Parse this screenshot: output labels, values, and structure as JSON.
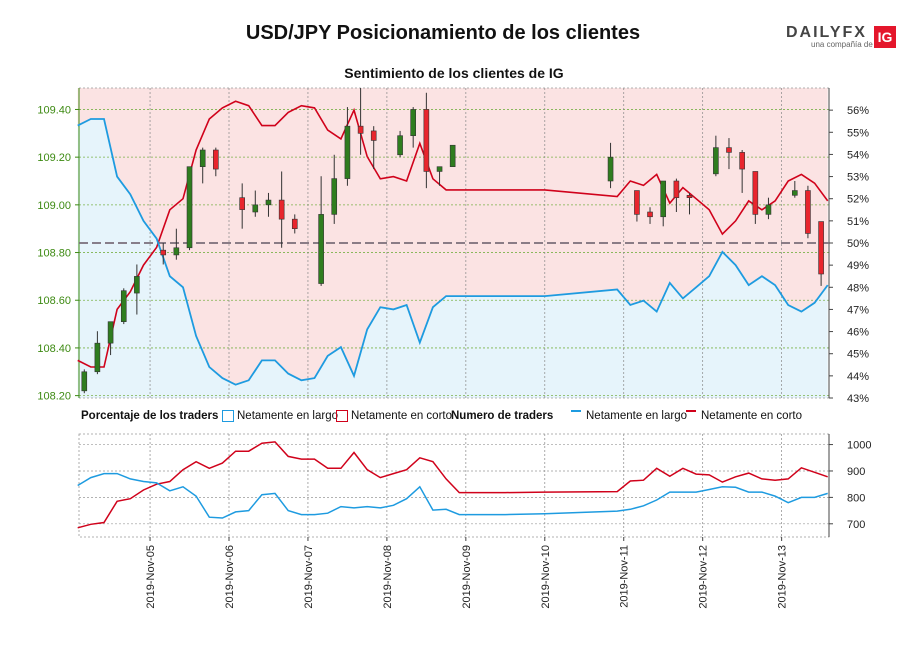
{
  "title": "USD/JPY Posicionamiento de los clientes",
  "subtitle": "Sentimiento de los clientes de IG",
  "logo": {
    "brand": "DAILYFX",
    "tagline": "una compañía de",
    "badge": "IG"
  },
  "legend": {
    "pct_label": "Porcentaje de los traders",
    "pct_long": "Netamente en largo",
    "pct_short": "Netamente en corto",
    "num_label": "Numero de traders",
    "num_long": "Netamente en largo",
    "num_short": "Netamente en corto"
  },
  "colors": {
    "long": "#1e9be0",
    "short": "#d0021b",
    "long_fill": "#e6f4fb",
    "short_fill": "#fbe3e3",
    "candle_up": "#2f7d1f",
    "candle_down": "#e8252d",
    "price_axis": "#3d8a12"
  },
  "chart_data": [
    {
      "type": "candlestick",
      "name": "price",
      "yaxis_left": {
        "ticks": [
          108.2,
          108.4,
          108.6,
          108.8,
          109.0,
          109.2,
          109.4
        ],
        "range": [
          108.19,
          109.49
        ]
      },
      "yaxis_right": {
        "ticks": [
          "43%",
          "44%",
          "45%",
          "46%",
          "47%",
          "48%",
          "49%",
          "50%",
          "51%",
          "52%",
          "53%",
          "54%",
          "55%",
          "56%"
        ],
        "range": [
          43,
          57
        ]
      },
      "reference_line_pct": 50,
      "x_ticks": [
        "2019-Nov-05",
        "2019-Nov-06",
        "2019-Nov-07",
        "2019-Nov-08",
        "2019-Nov-09",
        "2019-Nov-10",
        "2019-Nov-11",
        "2019-Nov-12",
        "2019-Nov-13"
      ],
      "x_range_days": [
        4.1,
        13.6
      ],
      "candles": [
        {
          "t": 4.167,
          "o": 108.22,
          "h": 108.31,
          "l": 108.21,
          "c": 108.3
        },
        {
          "t": 4.333,
          "o": 108.3,
          "h": 108.47,
          "l": 108.29,
          "c": 108.42
        },
        {
          "t": 4.5,
          "o": 108.42,
          "h": 108.51,
          "l": 108.37,
          "c": 108.51
        },
        {
          "t": 4.667,
          "o": 108.51,
          "h": 108.65,
          "l": 108.5,
          "c": 108.64
        },
        {
          "t": 4.833,
          "o": 108.63,
          "h": 108.75,
          "l": 108.54,
          "c": 108.7
        },
        {
          "t": 5.167,
          "o": 108.81,
          "h": 108.84,
          "l": 108.75,
          "c": 108.79
        },
        {
          "t": 5.333,
          "o": 108.79,
          "h": 108.9,
          "l": 108.77,
          "c": 108.82
        },
        {
          "t": 5.5,
          "o": 108.82,
          "h": 109.16,
          "l": 108.81,
          "c": 109.16
        },
        {
          "t": 5.667,
          "o": 109.16,
          "h": 109.24,
          "l": 109.09,
          "c": 109.23
        },
        {
          "t": 5.833,
          "o": 109.23,
          "h": 109.24,
          "l": 109.12,
          "c": 109.15
        },
        {
          "t": 6.167,
          "o": 109.03,
          "h": 109.09,
          "l": 108.9,
          "c": 108.98
        },
        {
          "t": 6.333,
          "o": 108.97,
          "h": 109.06,
          "l": 108.95,
          "c": 109.0
        },
        {
          "t": 6.5,
          "o": 109.0,
          "h": 109.05,
          "l": 108.95,
          "c": 109.02
        },
        {
          "t": 6.667,
          "o": 109.02,
          "h": 109.14,
          "l": 108.82,
          "c": 108.94
        },
        {
          "t": 6.833,
          "o": 108.94,
          "h": 108.96,
          "l": 108.88,
          "c": 108.9
        },
        {
          "t": 7.167,
          "o": 108.67,
          "h": 109.12,
          "l": 108.66,
          "c": 108.96
        },
        {
          "t": 7.333,
          "o": 108.96,
          "h": 109.21,
          "l": 108.92,
          "c": 109.11
        },
        {
          "t": 7.5,
          "o": 109.11,
          "h": 109.41,
          "l": 109.08,
          "c": 109.33
        },
        {
          "t": 7.667,
          "o": 109.33,
          "h": 109.49,
          "l": 109.21,
          "c": 109.3
        },
        {
          "t": 7.833,
          "o": 109.31,
          "h": 109.33,
          "l": 109.15,
          "c": 109.27
        },
        {
          "t": 8.167,
          "o": 109.21,
          "h": 109.31,
          "l": 109.2,
          "c": 109.29
        },
        {
          "t": 8.333,
          "o": 109.29,
          "h": 109.41,
          "l": 109.24,
          "c": 109.4
        },
        {
          "t": 8.5,
          "o": 109.4,
          "h": 109.47,
          "l": 109.07,
          "c": 109.14
        },
        {
          "t": 8.667,
          "o": 109.14,
          "h": 109.16,
          "l": 109.08,
          "c": 109.16
        },
        {
          "t": 8.833,
          "o": 109.16,
          "h": 109.25,
          "l": 109.16,
          "c": 109.25
        },
        {
          "t": 10.833,
          "o": 109.1,
          "h": 109.26,
          "l": 109.07,
          "c": 109.2
        },
        {
          "t": 11.167,
          "o": 109.06,
          "h": 109.06,
          "l": 108.93,
          "c": 108.96
        },
        {
          "t": 11.333,
          "o": 108.97,
          "h": 108.99,
          "l": 108.92,
          "c": 108.95
        },
        {
          "t": 11.5,
          "o": 108.95,
          "h": 109.1,
          "l": 108.91,
          "c": 109.1
        },
        {
          "t": 11.667,
          "o": 109.1,
          "h": 109.11,
          "l": 108.97,
          "c": 109.03
        },
        {
          "t": 11.833,
          "o": 109.04,
          "h": 109.05,
          "l": 108.96,
          "c": 109.03
        },
        {
          "t": 12.167,
          "o": 109.13,
          "h": 109.29,
          "l": 109.12,
          "c": 109.24
        },
        {
          "t": 12.333,
          "o": 109.24,
          "h": 109.28,
          "l": 109.15,
          "c": 109.22
        },
        {
          "t": 12.5,
          "o": 109.22,
          "h": 109.23,
          "l": 109.05,
          "c": 109.15
        },
        {
          "t": 12.667,
          "o": 109.14,
          "h": 109.14,
          "l": 108.92,
          "c": 108.96
        },
        {
          "t": 12.833,
          "o": 108.96,
          "h": 109.03,
          "l": 108.94,
          "c": 109.0
        },
        {
          "t": 13.167,
          "o": 109.04,
          "h": 109.1,
          "l": 109.03,
          "c": 109.06
        },
        {
          "t": 13.333,
          "o": 109.06,
          "h": 109.08,
          "l": 108.86,
          "c": 108.88
        },
        {
          "t": 13.5,
          "o": 108.93,
          "h": 108.93,
          "l": 108.66,
          "c": 108.71
        }
      ],
      "series": [
        {
          "name": "Netamente en largo",
          "unit": "%",
          "points": [
            [
              4.083,
              55.3
            ],
            [
              4.25,
              55.6
            ],
            [
              4.417,
              55.6
            ],
            [
              4.583,
              53.0
            ],
            [
              4.75,
              52.2
            ],
            [
              4.917,
              51.0
            ],
            [
              5.083,
              50.2
            ],
            [
              5.25,
              48.5
            ],
            [
              5.417,
              48.0
            ],
            [
              5.583,
              45.8
            ],
            [
              5.75,
              44.4
            ],
            [
              5.917,
              43.9
            ],
            [
              6.083,
              43.6
            ],
            [
              6.25,
              43.8
            ],
            [
              6.417,
              44.7
            ],
            [
              6.583,
              44.7
            ],
            [
              6.75,
              44.1
            ],
            [
              6.917,
              43.8
            ],
            [
              7.083,
              43.9
            ],
            [
              7.25,
              44.9
            ],
            [
              7.417,
              45.3
            ],
            [
              7.583,
              44.0
            ],
            [
              7.75,
              46.1
            ],
            [
              7.917,
              47.1
            ],
            [
              8.083,
              47.0
            ],
            [
              8.25,
              47.2
            ],
            [
              8.417,
              45.5
            ],
            [
              8.583,
              47.1
            ],
            [
              8.75,
              47.6
            ],
            [
              8.917,
              47.6
            ],
            [
              9.5,
              47.6
            ],
            [
              10.0,
              47.6
            ],
            [
              10.917,
              47.9
            ],
            [
              11.083,
              47.2
            ],
            [
              11.25,
              47.4
            ],
            [
              11.417,
              46.9
            ],
            [
              11.583,
              48.2
            ],
            [
              11.75,
              47.5
            ],
            [
              11.917,
              48.0
            ],
            [
              12.083,
              48.5
            ],
            [
              12.25,
              49.6
            ],
            [
              12.417,
              49.0
            ],
            [
              12.583,
              48.1
            ],
            [
              12.75,
              48.5
            ],
            [
              12.917,
              48.1
            ],
            [
              13.083,
              47.2
            ],
            [
              13.25,
              46.9
            ],
            [
              13.417,
              47.3
            ],
            [
              13.583,
              48.1
            ]
          ]
        },
        {
          "name": "Netamente en corto",
          "unit": "%",
          "note_derived": "100 - long",
          "points": []
        }
      ]
    },
    {
      "type": "line",
      "name": "Numero de traders",
      "yaxis_right": {
        "ticks": [
          700,
          800,
          900,
          1000
        ],
        "range": [
          650,
          1040
        ]
      },
      "series": [
        {
          "name": "Netamente en largo",
          "points": [
            [
              4.083,
              845
            ],
            [
              4.25,
              875
            ],
            [
              4.417,
              890
            ],
            [
              4.583,
              890
            ],
            [
              4.75,
              870
            ],
            [
              4.917,
              860
            ],
            [
              5.083,
              855
            ],
            [
              5.25,
              825
            ],
            [
              5.417,
              840
            ],
            [
              5.583,
              805
            ],
            [
              5.75,
              725
            ],
            [
              5.917,
              722
            ],
            [
              6.083,
              745
            ],
            [
              6.25,
              750
            ],
            [
              6.417,
              810
            ],
            [
              6.583,
              815
            ],
            [
              6.75,
              750
            ],
            [
              6.917,
              735
            ],
            [
              7.083,
              735
            ],
            [
              7.25,
              740
            ],
            [
              7.417,
              765
            ],
            [
              7.583,
              760
            ],
            [
              7.75,
              765
            ],
            [
              7.917,
              760
            ],
            [
              8.083,
              770
            ],
            [
              8.25,
              795
            ],
            [
              8.417,
              840
            ],
            [
              8.583,
              752
            ],
            [
              8.75,
              755
            ],
            [
              8.917,
              735
            ],
            [
              9.5,
              735
            ],
            [
              10.0,
              738
            ],
            [
              10.917,
              748
            ],
            [
              11.083,
              755
            ],
            [
              11.25,
              768
            ],
            [
              11.417,
              790
            ],
            [
              11.583,
              820
            ],
            [
              11.75,
              820
            ],
            [
              11.917,
              820
            ],
            [
              12.083,
              830
            ],
            [
              12.25,
              840
            ],
            [
              12.417,
              838
            ],
            [
              12.583,
              820
            ],
            [
              12.75,
              820
            ],
            [
              12.917,
              805
            ],
            [
              13.083,
              780
            ],
            [
              13.25,
              800
            ],
            [
              13.417,
              800
            ],
            [
              13.583,
              815
            ]
          ]
        },
        {
          "name": "Netamente en corto",
          "points": [
            [
              4.083,
              685
            ],
            [
              4.25,
              698
            ],
            [
              4.417,
              705
            ],
            [
              4.583,
              785
            ],
            [
              4.75,
              795
            ],
            [
              4.917,
              828
            ],
            [
              5.083,
              850
            ],
            [
              5.25,
              860
            ],
            [
              5.417,
              905
            ],
            [
              5.583,
              935
            ],
            [
              5.75,
              910
            ],
            [
              5.917,
              930
            ],
            [
              6.083,
              975
            ],
            [
              6.25,
              975
            ],
            [
              6.417,
              1005
            ],
            [
              6.583,
              1010
            ],
            [
              6.75,
              955
            ],
            [
              6.917,
              945
            ],
            [
              7.083,
              945
            ],
            [
              7.25,
              910
            ],
            [
              7.417,
              910
            ],
            [
              7.583,
              970
            ],
            [
              7.75,
              905
            ],
            [
              7.917,
              875
            ],
            [
              8.083,
              890
            ],
            [
              8.25,
              905
            ],
            [
              8.417,
              950
            ],
            [
              8.583,
              935
            ],
            [
              8.75,
              870
            ],
            [
              8.917,
              818
            ],
            [
              9.5,
              818
            ],
            [
              10.0,
              820
            ],
            [
              10.917,
              822
            ],
            [
              11.083,
              862
            ],
            [
              11.25,
              865
            ],
            [
              11.417,
              910
            ],
            [
              11.583,
              880
            ],
            [
              11.75,
              910
            ],
            [
              11.917,
              888
            ],
            [
              12.083,
              885
            ],
            [
              12.25,
              858
            ],
            [
              12.417,
              878
            ],
            [
              12.583,
              892
            ],
            [
              12.75,
              870
            ],
            [
              12.917,
              865
            ],
            [
              13.083,
              870
            ],
            [
              13.25,
              912
            ],
            [
              13.417,
              895
            ],
            [
              13.583,
              878
            ]
          ]
        }
      ]
    }
  ]
}
